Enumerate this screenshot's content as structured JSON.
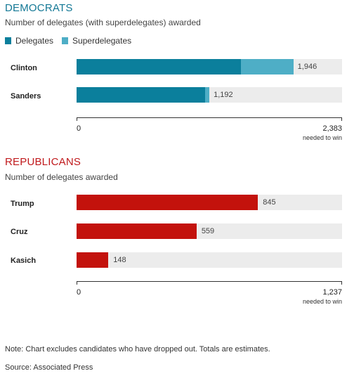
{
  "colors": {
    "dem_title": "#137895",
    "rep_title": "#c0191c",
    "delegates": "#0b7f9c",
    "superdelegates": "#4eaec6",
    "republican_bar": "#c3120c",
    "track": "#ececec"
  },
  "chart_data": [
    {
      "type": "bar",
      "orientation": "horizontal",
      "stacked": true,
      "title": "DEMOCRATS",
      "subtitle": "Number of delegates (with superdelegates) awarded",
      "legend": [
        "Delegates",
        "Superdelegates"
      ],
      "legend_position": "top-left",
      "categories": [
        "Clinton",
        "Sanders"
      ],
      "series": [
        {
          "name": "Delegates",
          "values": [
            1477,
            1153
          ]
        },
        {
          "name": "Superdelegates",
          "values": [
            469,
            39
          ]
        }
      ],
      "totals": [
        "1,946",
        "1,192"
      ],
      "total_values": [
        1946,
        1192
      ],
      "xlim": [
        0,
        2383
      ],
      "axis_start_label": "0",
      "axis_end_label": "2,383",
      "axis_end_note": "needed to win"
    },
    {
      "type": "bar",
      "orientation": "horizontal",
      "title": "REPUBLICANS",
      "subtitle": "Number of delegates awarded",
      "categories": [
        "Trump",
        "Cruz",
        "Kasich"
      ],
      "values": [
        845,
        559,
        148
      ],
      "value_labels": [
        "845",
        "559",
        "148"
      ],
      "xlim": [
        0,
        1237
      ],
      "axis_start_label": "0",
      "axis_end_label": "1,237",
      "axis_end_note": "needed to win"
    }
  ],
  "footer": {
    "note": "Note: Chart excludes candidates who have dropped out. Totals are estimates.",
    "source": "Source: Associated Press"
  }
}
